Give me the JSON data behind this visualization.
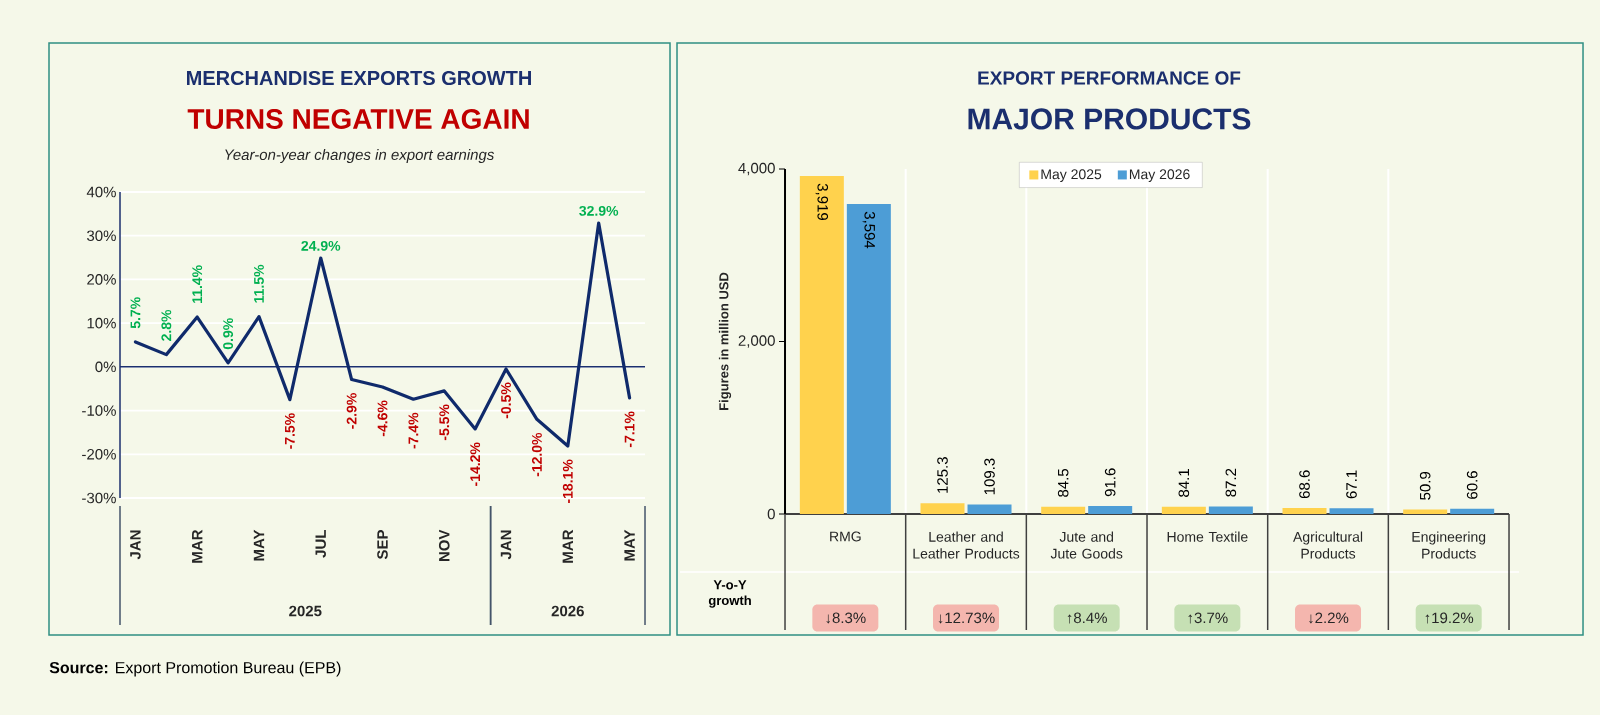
{
  "chart_data": [
    {
      "type": "line",
      "title": "MERCHANDISE EXPORTS GROWTH",
      "subtitle": "TURNS NEGATIVE AGAIN",
      "annotations": [
        "Year-on-year changes in export earnings",
        "2025",
        "2026",
        "**Source:** Export Promotion Bureau (EPB)"
      ],
      "categories": [
        "JAN",
        null,
        "MAR",
        null,
        "MAY",
        null,
        "JUL",
        null,
        "SEP",
        null,
        "NOV",
        null,
        "JAN",
        null,
        "MAR",
        null,
        "MAY"
      ],
      "series": [
        {
          "color": "#0f2a6b",
          "values": [
            5.7,
            2.8,
            11.4,
            0.9,
            11.5,
            -7.5,
            24.9,
            -2.9,
            -4.6,
            -7.4,
            -5.5,
            -14.2,
            -0.5,
            -12.0,
            -18.1,
            32.9,
            -7.1
          ],
          "value_labels": [
            "5.7%",
            "2.8%",
            "11.4%",
            "0.9%",
            "11.5%",
            "-7.5%",
            "24.9%",
            "-2.9%",
            "-4.6%",
            "-7.4%",
            "-5.5%",
            "-14.2%",
            "-0.5%",
            "-12.0%",
            "-18.1%",
            "32.9%",
            "-7.1%"
          ]
        }
      ],
      "ylim": [
        -30,
        40
      ],
      "yticks": [
        {
          "value": -30,
          "label": "-30%"
        },
        {
          "value": -20,
          "label": "-20%"
        },
        {
          "value": -10,
          "label": "-10%"
        },
        {
          "value": 0,
          "label": "0%"
        },
        {
          "value": 10,
          "label": "10%"
        },
        {
          "value": 20,
          "label": "20%"
        },
        {
          "value": 30,
          "label": "30%"
        },
        {
          "value": 40,
          "label": "40%"
        }
      ],
      "ref_lines": [
        {
          "axis": "y",
          "value": 0,
          "color": "#1b2f6e",
          "line_style": "solid"
        }
      ],
      "grid": "y"
    },
    {
      "type": "bar",
      "title": "EXPORT PERFORMANCE OF",
      "subtitle": "MAJOR PRODUCTS",
      "ylabel": "Figures in million USD",
      "categories": [
        "RMG",
        "Leather and Leather Products",
        "Jute and Jute Goods",
        "Home Textile",
        "Agricultural Products",
        "Engineering Products"
      ],
      "series": [
        {
          "name": "May 2025",
          "color": "#ffd24d",
          "values": [
            3919,
            125.3,
            84.5,
            84.1,
            68.6,
            50.9
          ],
          "value_labels": [
            "3,919",
            "125.3",
            "84.5",
            "84.1",
            "68.6",
            "50.9"
          ]
        },
        {
          "name": "May 2026",
          "color": "#4d9dd6",
          "values": [
            3594,
            109.3,
            91.6,
            87.2,
            67.1,
            60.6
          ],
          "value_labels": [
            "3,594",
            "109.3",
            "91.6",
            "87.2",
            "67.1",
            "60.6"
          ]
        }
      ],
      "ylim": [
        0,
        4000
      ],
      "yticks": [
        0,
        {
          "value": 2000,
          "label": "2,000"
        },
        {
          "value": 4000,
          "label": "4,000"
        }
      ],
      "grid": "x",
      "legend": "top",
      "annotations": [
        "Y-o-Y growth",
        "↓8.3%",
        "↓12.73%",
        "↑8.4%",
        "↑3.7%",
        "↓2.2%",
        "↑19.2%"
      ]
    }
  ]
}
